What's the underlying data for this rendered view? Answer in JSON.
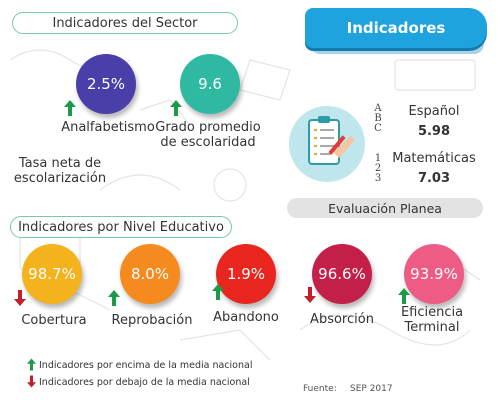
{
  "header": {
    "sector_title": "Indicadores del Sector",
    "banner_title": "Indicadores",
    "level_title": "Indicadores por Nivel Educativo"
  },
  "sector": {
    "analfabetismo": {
      "value": "2.5%",
      "label": "Analfabetismo",
      "trend": "up",
      "color": "#4a3ea8"
    },
    "grado": {
      "value": "9.6",
      "label_line1": "Grado promedio",
      "label_line2": "de escolaridad",
      "trend": "up",
      "color": "#2fb9a3"
    },
    "tasa_line1": "Tasa neta de",
    "tasa_line2": "escolarización"
  },
  "planea": {
    "espanol_label": "Español",
    "espanol_value": "5.98",
    "matematicas_label": "Matemáticas",
    "matematicas_value": "7.03",
    "abc_glyphs": [
      "A",
      "B",
      "C"
    ],
    "num_glyphs": [
      "1",
      "2",
      "3"
    ],
    "footer_label": "Evaluación Planea"
  },
  "levels": [
    {
      "value": "98.7%",
      "label": "Cobertura",
      "trend": "down",
      "color": "#f4b21c"
    },
    {
      "value": "8.0%",
      "label": "Reprobación",
      "trend": "up",
      "color": "#f58a1f"
    },
    {
      "value": "1.9%",
      "label": "Abandono",
      "trend": "up",
      "color": "#e8261f"
    },
    {
      "value": "96.6%",
      "label": "Absorción",
      "trend": "down",
      "color": "#c41f48"
    },
    {
      "value": "93.9%",
      "label_line1": "Eficiencia",
      "label_line2": "Terminal",
      "trend": "up",
      "color": "#ee5c86"
    }
  ],
  "legend": {
    "up": "Indicadores por encima de la media nacional",
    "down": "Indicadores por debajo de la media nacional"
  },
  "source": {
    "label": "Fuente:",
    "value": "SEP 2017"
  },
  "colors": {
    "up_arrow": "#1a9a4a",
    "down_arrow": "#c21f2c",
    "pill_border": "#79c8a8",
    "banner": "#1fa3df"
  },
  "icons": {
    "arrow_up": "arrow-up-icon",
    "arrow_down": "arrow-down-icon",
    "clipboard": "clipboard-icon"
  }
}
